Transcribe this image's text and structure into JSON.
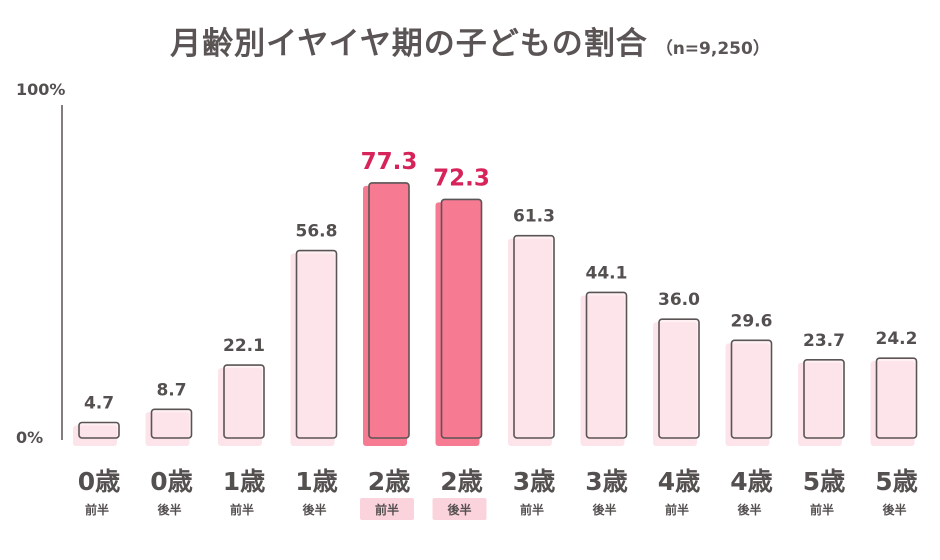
{
  "chart_data": {
    "type": "bar",
    "title": "月齢別イヤイヤ期の子どもの割合",
    "n_label": "（n=9,250）",
    "ylim": [
      0,
      100
    ],
    "ytick_labels": [
      "100%",
      "0%"
    ],
    "highlight_indices": [
      4,
      5
    ],
    "categories": [
      {
        "age": "0歳",
        "half": "前半"
      },
      {
        "age": "0歳",
        "half": "後半"
      },
      {
        "age": "1歳",
        "half": "前半"
      },
      {
        "age": "1歳",
        "half": "後半"
      },
      {
        "age": "2歳",
        "half": "前半"
      },
      {
        "age": "2歳",
        "half": "後半"
      },
      {
        "age": "3歳",
        "half": "前半"
      },
      {
        "age": "3歳",
        "half": "後半"
      },
      {
        "age": "4歳",
        "half": "前半"
      },
      {
        "age": "4歳",
        "half": "後半"
      },
      {
        "age": "5歳",
        "half": "前半"
      },
      {
        "age": "5歳",
        "half": "後半"
      }
    ],
    "values": [
      4.7,
      8.7,
      22.1,
      56.8,
      77.3,
      72.3,
      61.3,
      44.1,
      36.0,
      29.6,
      23.7,
      24.2
    ],
    "value_labels": [
      "4.7",
      "8.7",
      "22.1",
      "56.8",
      "77.3",
      "72.3",
      "61.3",
      "44.1",
      "36.0",
      "29.6",
      "23.7",
      "24.2"
    ],
    "colors": {
      "bar_fill": "#fde4ea",
      "bar_fill_highlight": "#f77a93",
      "bar_outline": "#5a5454",
      "highlight_text": "#d6245a",
      "text": "#555050",
      "half_tag_highlight": "#fbd3dd"
    }
  }
}
